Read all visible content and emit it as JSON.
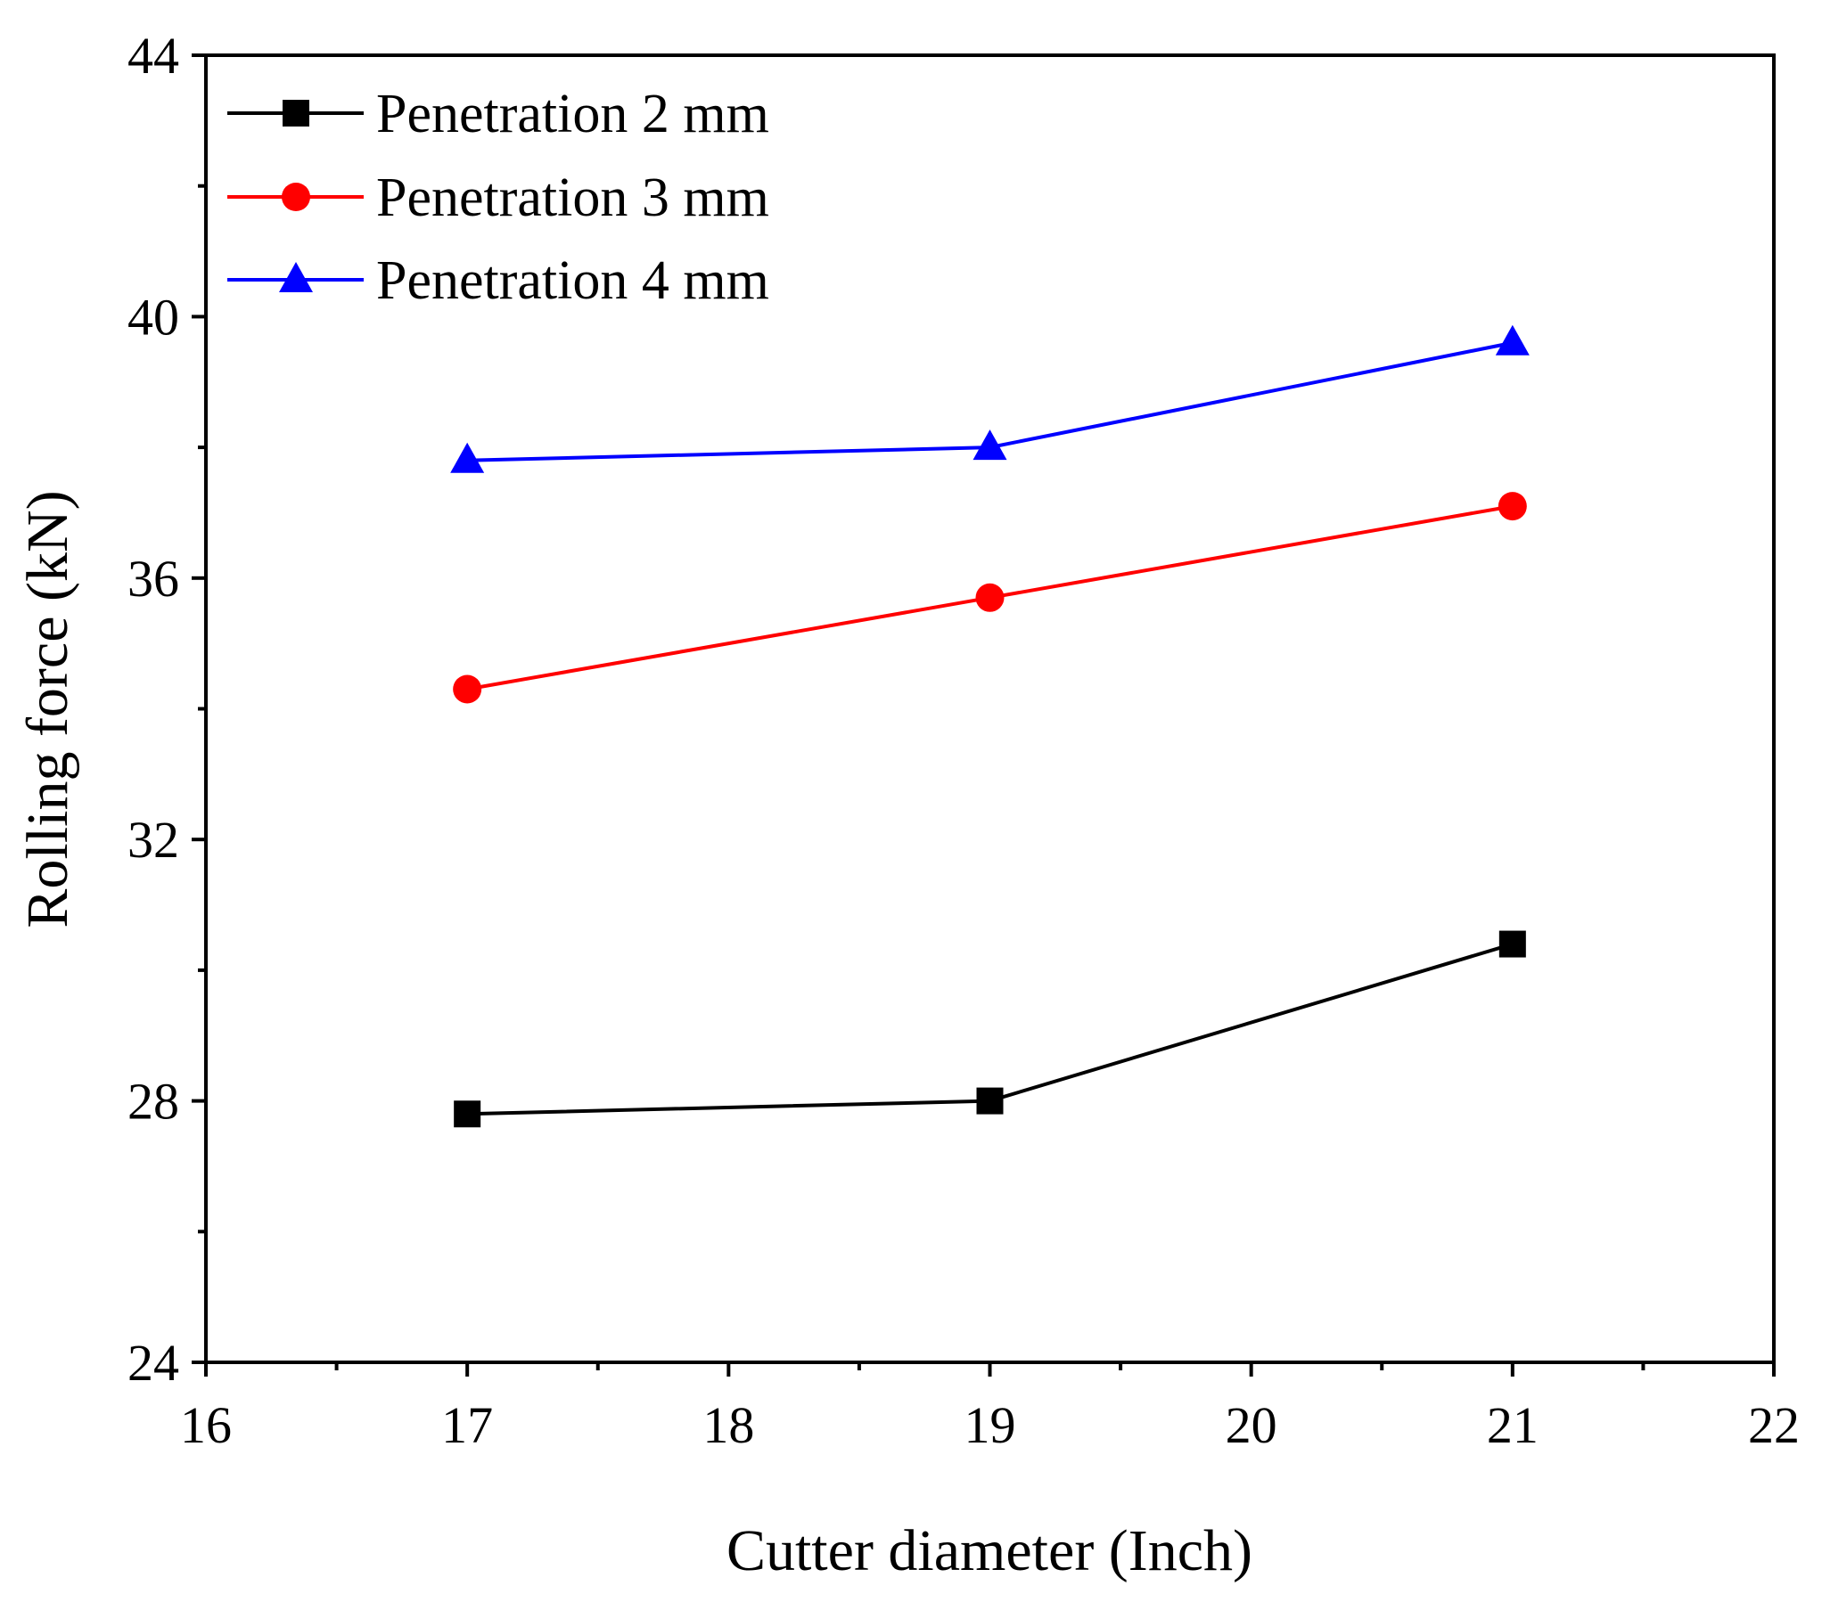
{
  "chart_data": {
    "type": "line",
    "title": "",
    "xlabel": "Cutter diameter (Inch)",
    "ylabel": "Rolling force (kN)",
    "xlim": [
      16,
      22
    ],
    "ylim": [
      24,
      44
    ],
    "xticks": [
      16,
      17,
      18,
      19,
      20,
      21,
      22
    ],
    "yticks": [
      24,
      28,
      32,
      36,
      40,
      44
    ],
    "xticks_minor": [
      16.5,
      17.5,
      18.5,
      19.5,
      20.5,
      21.5
    ],
    "yticks_minor": [
      26,
      30,
      34,
      38,
      42
    ],
    "legend_position": "top-left",
    "x": [
      17,
      19,
      21
    ],
    "series": [
      {
        "name": "Penetration 2 mm",
        "color": "#000000",
        "marker": "square",
        "values": [
          27.8,
          28.0,
          30.4
        ]
      },
      {
        "name": "Penetration 3 mm",
        "color": "#ff0000",
        "marker": "circle",
        "values": [
          34.3,
          35.7,
          37.1
        ]
      },
      {
        "name": "Penetration 4 mm",
        "color": "#0000ff",
        "marker": "triangle",
        "values": [
          37.8,
          38.0,
          39.6
        ]
      }
    ]
  }
}
